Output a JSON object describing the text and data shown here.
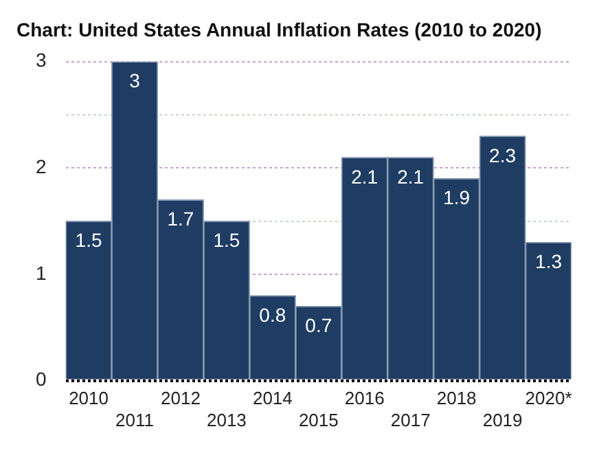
{
  "chart_data": {
    "type": "bar",
    "title": "Chart: United States Annual Inflation Rates (2010 to 2020)",
    "categories": [
      "2010",
      "2011",
      "2012",
      "2013",
      "2014",
      "2015",
      "2016",
      "2017",
      "2018",
      "2019",
      "2020*"
    ],
    "values": [
      1.5,
      3,
      1.7,
      1.5,
      0.8,
      0.7,
      2.1,
      2.1,
      1.9,
      2.3,
      1.3
    ],
    "color": "#1f3d63",
    "ylim": [
      0,
      3
    ],
    "yticks": [
      0,
      1,
      {
        "value": 1.5,
        "label": null
      },
      2,
      {
        "value": 2.5,
        "label": null
      },
      3
    ],
    "grid": "y",
    "data_labels": true,
    "legend": false
  }
}
